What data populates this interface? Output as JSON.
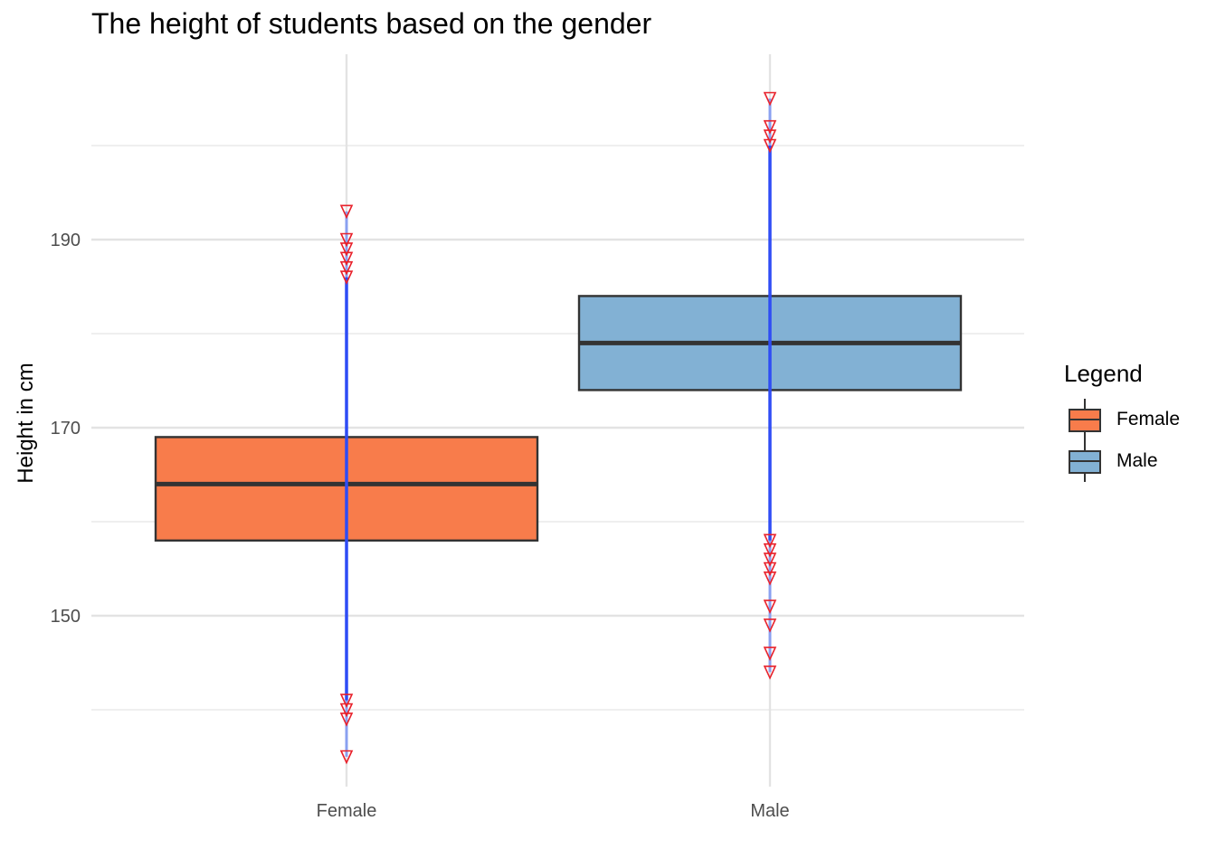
{
  "chart_data": {
    "type": "boxplot",
    "title": "The height of students based on the gender",
    "xlabel": "",
    "ylabel": "Height in cm",
    "categories": [
      "Female",
      "Male"
    ],
    "ylim": [
      134,
      208
    ],
    "yticks": [
      150,
      170,
      190
    ],
    "grid": true,
    "legend": {
      "title": "Legend",
      "placement": "right",
      "entries": [
        "Female",
        "Male"
      ]
    },
    "series": [
      {
        "name": "Female",
        "color": "#F87C4B",
        "min": 141,
        "q1": 158,
        "median": 164,
        "q3": 169,
        "max": 186,
        "points": [
          193,
          190,
          189,
          188,
          187,
          186,
          141,
          140,
          139,
          135
        ]
      },
      {
        "name": "Male",
        "color": "#82B1D4",
        "min": 158,
        "q1": 174,
        "median": 179,
        "q3": 184,
        "max": 200,
        "points": [
          205,
          202,
          201,
          200,
          158,
          157,
          156,
          155,
          154,
          151,
          149,
          146,
          144
        ]
      }
    ],
    "colors": {
      "line": "#2E4CF5",
      "marker": "#E8202A",
      "grid": "#E5E5E5",
      "box_border": "#333333"
    }
  }
}
